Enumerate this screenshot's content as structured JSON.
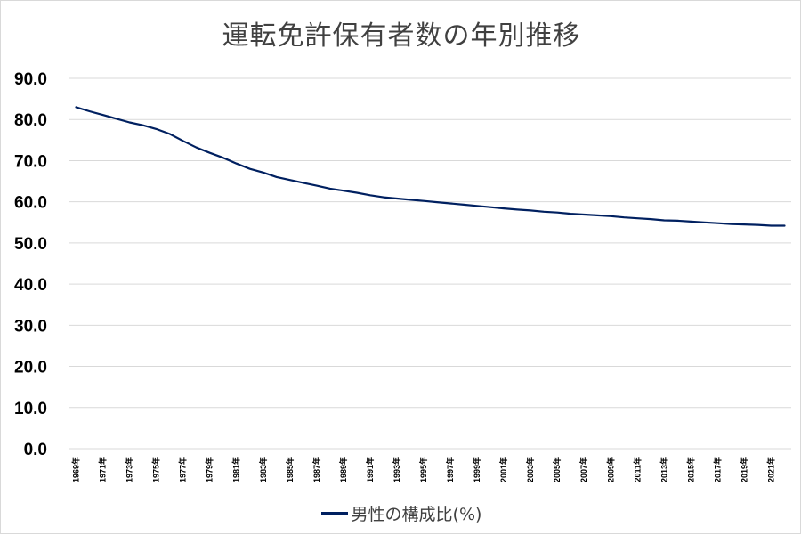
{
  "chart_data": {
    "type": "line",
    "title": "運転免許保有者数の年別推移",
    "xlabel": "",
    "ylabel": "",
    "ylim": [
      0,
      90
    ],
    "y_ticks": [
      "0.0",
      "10.0",
      "20.0",
      "30.0",
      "40.0",
      "50.0",
      "60.0",
      "70.0",
      "80.0",
      "90.0"
    ],
    "x_tick_labels": [
      "1969年",
      "1971年",
      "1973年",
      "1975年",
      "1977年",
      "1979年",
      "1981年",
      "1983年",
      "1985年",
      "1987年",
      "1989年",
      "1991年",
      "1993年",
      "1995年",
      "1997年",
      "1999年",
      "2001年",
      "2003年",
      "2005年",
      "2007年",
      "2009年",
      "2011年",
      "2013年",
      "2015年",
      "2017年",
      "2019年",
      "2021年"
    ],
    "x": [
      1969,
      1970,
      1971,
      1972,
      1973,
      1974,
      1975,
      1976,
      1977,
      1978,
      1979,
      1980,
      1981,
      1982,
      1983,
      1984,
      1985,
      1986,
      1987,
      1988,
      1989,
      1990,
      1991,
      1992,
      1993,
      1994,
      1995,
      1996,
      1997,
      1998,
      1999,
      2000,
      2001,
      2002,
      2003,
      2004,
      2005,
      2006,
      2007,
      2008,
      2009,
      2010,
      2011,
      2012,
      2013,
      2014,
      2015,
      2016,
      2017,
      2018,
      2019,
      2020,
      2021,
      2022
    ],
    "series": [
      {
        "name": "男性の構成比(%)",
        "color": "#002060",
        "values": [
          83.0,
          82.0,
          81.1,
          80.2,
          79.3,
          78.6,
          77.7,
          76.5,
          74.8,
          73.2,
          71.9,
          70.7,
          69.3,
          68.0,
          67.1,
          66.0,
          65.3,
          64.6,
          63.9,
          63.2,
          62.7,
          62.2,
          61.6,
          61.1,
          60.8,
          60.5,
          60.2,
          59.9,
          59.6,
          59.3,
          59.0,
          58.7,
          58.4,
          58.1,
          57.9,
          57.6,
          57.4,
          57.1,
          56.9,
          56.7,
          56.5,
          56.2,
          56.0,
          55.8,
          55.5,
          55.4,
          55.2,
          55.0,
          54.8,
          54.6,
          54.5,
          54.4,
          54.2,
          54.2
        ]
      }
    ],
    "grid": true,
    "legend_position": "bottom"
  }
}
